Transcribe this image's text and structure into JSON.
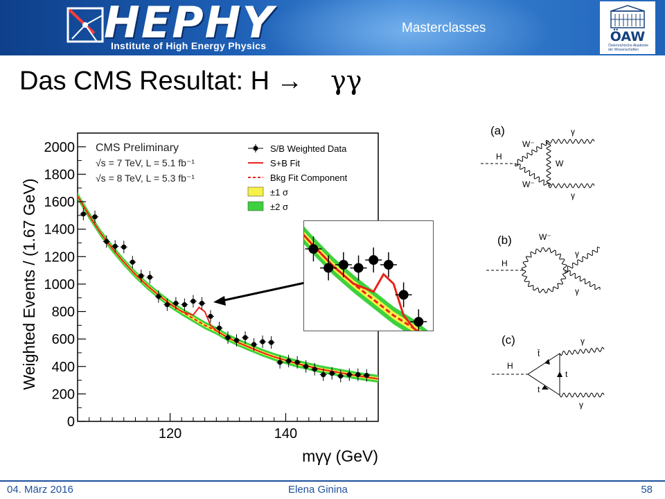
{
  "header": {
    "logo_text": "HEPHY",
    "logo_subtitle": "Institute of High Energy Physics",
    "label": "Masterclasses",
    "partner_logo": "ÖAW",
    "partner_subtitle": "Österreichische Akademie der Wissenschaften"
  },
  "title": {
    "prefix": "Das CMS Resultat: H",
    "arrow": "→",
    "symbol": "γγ"
  },
  "chart_data": {
    "type": "scatter",
    "xlabel": "mγγ (GeV)",
    "ylabel": "Weighted Events / (1.67 GeV)",
    "xlim": [
      104,
      156
    ],
    "ylim": [
      0,
      2100
    ],
    "x_ticks": [
      120,
      140
    ],
    "y_ticks": [
      0,
      200,
      400,
      600,
      800,
      1000,
      1200,
      1400,
      1600,
      1800,
      2000
    ],
    "annotations": [
      "CMS Preliminary",
      "√s = 7 TeV, L = 5.1 fb⁻¹",
      "√s = 8 TeV, L = 5.3 fb⁻¹"
    ],
    "legend": {
      "placement": "top-right",
      "entries": [
        "S/B Weighted Data",
        "S+B Fit",
        "Bkg Fit Component",
        "±1 σ",
        "±2 σ"
      ]
    },
    "colors": {
      "fit": "#e8231b",
      "bkg": "#e8231b",
      "band1": "#f6f148",
      "band2": "#3ed13e",
      "data": "#000000"
    },
    "series": [
      {
        "name": "S/B Weighted Data",
        "x": [
          105,
          107,
          109,
          110.5,
          112,
          113.5,
          115,
          116.5,
          118,
          119.5,
          121,
          122.5,
          124,
          125.5,
          127,
          128.5,
          130,
          131.5,
          133,
          134.5,
          136,
          137.5,
          139,
          140.5,
          142,
          143.5,
          145,
          146.5,
          148,
          149.5,
          151,
          152.5,
          154
        ],
        "y": [
          1510,
          1490,
          1310,
          1275,
          1270,
          1160,
          1060,
          1050,
          910,
          850,
          860,
          850,
          875,
          860,
          765,
          680,
          610,
          590,
          610,
          560,
          580,
          575,
          430,
          440,
          430,
          400,
          380,
          340,
          350,
          330,
          340,
          340,
          335
        ]
      },
      {
        "name": "S+B Fit",
        "x": [
          104,
          106,
          108,
          110,
          112,
          114,
          116,
          118,
          120,
          122,
          124,
          125,
          126,
          127,
          128,
          130,
          132,
          134,
          136,
          138,
          140,
          142,
          144,
          146,
          148,
          150,
          152,
          154,
          156
        ],
        "y": [
          1640,
          1500,
          1370,
          1260,
          1160,
          1070,
          990,
          920,
          855,
          800,
          775,
          830,
          800,
          700,
          660,
          610,
          570,
          535,
          500,
          470,
          445,
          420,
          400,
          380,
          365,
          350,
          335,
          322,
          310
        ]
      },
      {
        "name": "Bkg Fit Component",
        "x": [
          104,
          106,
          108,
          110,
          112,
          114,
          116,
          118,
          120,
          122,
          124,
          126,
          128,
          130,
          132,
          134,
          136,
          138,
          140,
          142,
          144,
          146,
          148,
          150,
          152,
          154,
          156
        ],
        "y": [
          1640,
          1500,
          1370,
          1260,
          1160,
          1070,
          990,
          920,
          855,
          800,
          750,
          700,
          660,
          610,
          570,
          535,
          500,
          470,
          445,
          420,
          400,
          380,
          365,
          350,
          335,
          322,
          310
        ]
      }
    ]
  },
  "diagrams": [
    {
      "id": "a",
      "label": "(a)",
      "particles": [
        "H",
        "W⁻",
        "W",
        "W⁻",
        "γ",
        "γ"
      ]
    },
    {
      "id": "b",
      "label": "(b)",
      "particles": [
        "H",
        "W⁻",
        "γ",
        "γ"
      ]
    },
    {
      "id": "c",
      "label": "(c)",
      "particles": [
        "H",
        "t̄",
        "t",
        "t",
        "γ",
        "γ"
      ]
    }
  ],
  "footer": {
    "date": "04. März 2016",
    "author": "Elena Ginina",
    "page": "58"
  }
}
